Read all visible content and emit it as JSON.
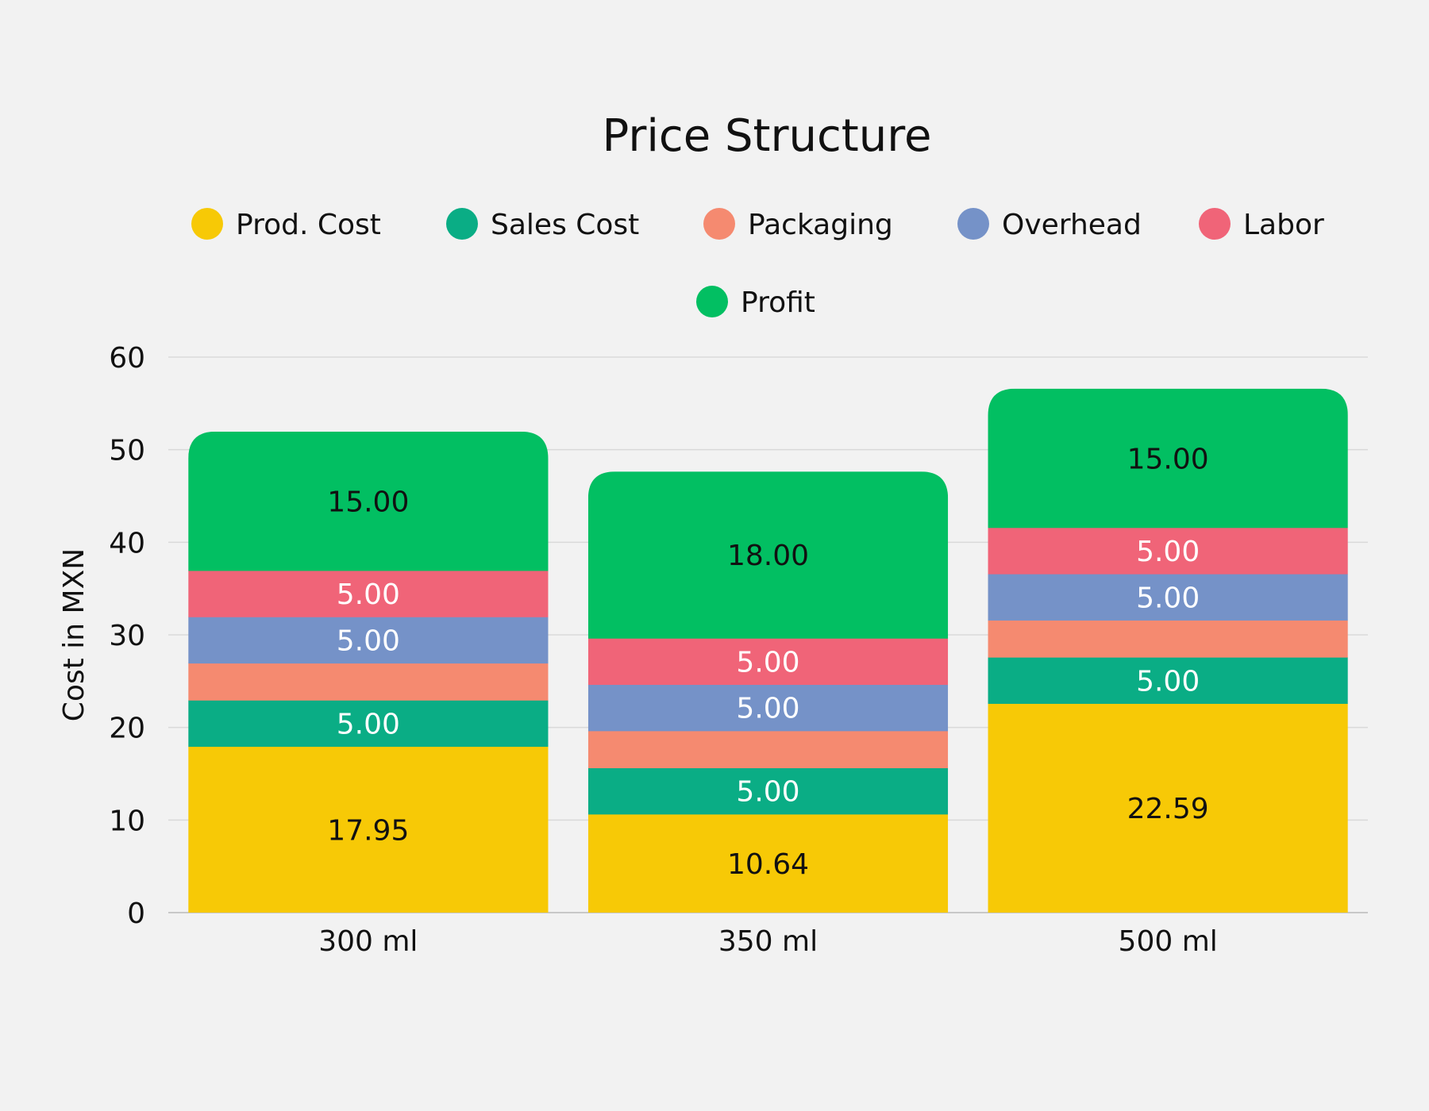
{
  "chart_data": {
    "type": "bar",
    "stacked": true,
    "title": "Price Structure",
    "xlabel": "",
    "ylabel": "Cost in MXN",
    "ylim": [
      0,
      60
    ],
    "yticks": [
      0,
      10,
      20,
      30,
      40,
      50,
      60
    ],
    "grid": true,
    "legend_position": "top",
    "categories": [
      "300 ml",
      "350 ml",
      "500 ml"
    ],
    "series": [
      {
        "name": "Prod. Cost",
        "color": "#f7c906",
        "label_color": "#111111",
        "values": [
          17.95,
          10.64,
          22.59
        ],
        "labels": [
          "17.95",
          "10.64",
          "22.59"
        ]
      },
      {
        "name": "Sales Cost",
        "color": "#0aad85",
        "label_color": "#ffffff",
        "values": [
          5.0,
          5.0,
          5.0
        ],
        "labels": [
          "5.00",
          "5.00",
          "5.00"
        ]
      },
      {
        "name": "Packaging",
        "color": "#f58a70",
        "label_color": "#ffffff",
        "values": [
          4.0,
          4.0,
          4.0
        ],
        "labels": [
          "",
          "",
          ""
        ]
      },
      {
        "name": "Overhead",
        "color": "#7592c8",
        "label_color": "#ffffff",
        "values": [
          5.0,
          5.0,
          5.0
        ],
        "labels": [
          "5.00",
          "5.00",
          "5.00"
        ]
      },
      {
        "name": "Labor",
        "color": "#f06478",
        "label_color": "#ffffff",
        "values": [
          5.0,
          5.0,
          5.0
        ],
        "labels": [
          "5.00",
          "5.00",
          "5.00"
        ]
      },
      {
        "name": "Profit",
        "color": "#02bf62",
        "label_color": "#111111",
        "values": [
          15.0,
          18.0,
          15.0
        ],
        "labels": [
          "15.00",
          "18.00",
          "15.00"
        ]
      }
    ]
  }
}
